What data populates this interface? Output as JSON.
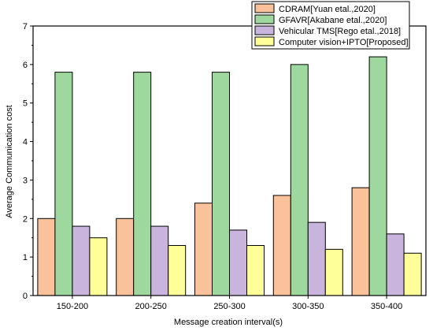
{
  "chart_data": {
    "type": "bar",
    "xlabel": "Message creation interval(s)",
    "ylabel": "Average Communication cost",
    "categories": [
      "150-200",
      "200-250",
      "250-300",
      "300-350",
      "350-400"
    ],
    "ylim": [
      0,
      7
    ],
    "yticks": [
      0,
      1,
      2,
      3,
      4,
      5,
      6,
      7
    ],
    "grid": false,
    "legend_position": "top-right",
    "series": [
      {
        "name": "CDRAM[Yuan etal.,2020]",
        "color": "#f9c29b",
        "values": [
          2.0,
          2.0,
          2.4,
          2.6,
          2.8
        ]
      },
      {
        "name": "GFAVR[Akabane etal.,2020]",
        "color": "#9fd89f",
        "values": [
          5.8,
          5.8,
          5.8,
          6.0,
          6.2
        ]
      },
      {
        "name": "Vehicular TMS[Rego etal.,2018]",
        "color": "#c8b4dc",
        "values": [
          1.8,
          1.8,
          1.7,
          1.9,
          1.6
        ]
      },
      {
        "name": "Computer vision+IPTO[Proposed]",
        "color": "#ffff99",
        "values": [
          1.5,
          1.3,
          1.3,
          1.2,
          1.1
        ]
      }
    ]
  }
}
